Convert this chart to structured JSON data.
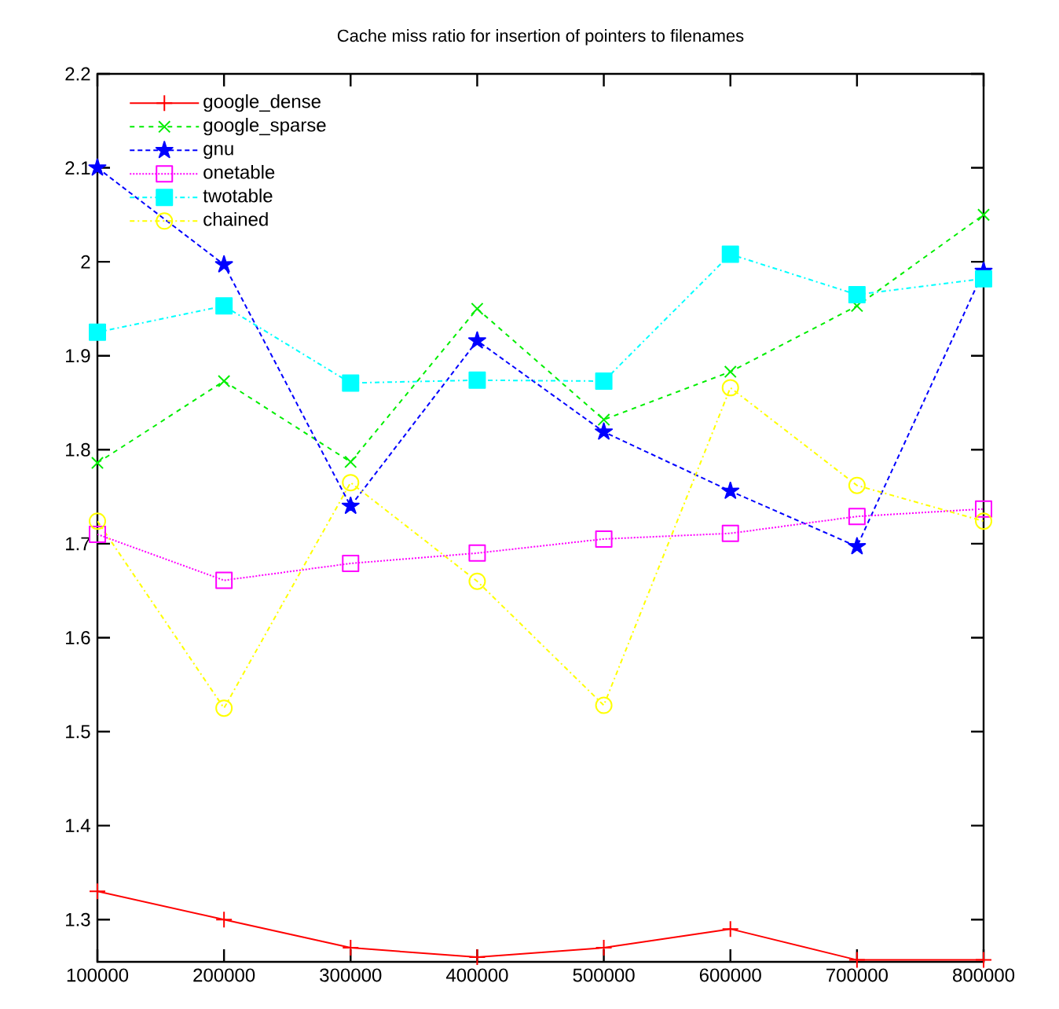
{
  "chart_data": {
    "type": "line",
    "title": "Cache miss ratio for insertion of pointers to filenames",
    "x": [
      100000,
      200000,
      300000,
      400000,
      500000,
      600000,
      700000,
      800000
    ],
    "xlim": [
      100000,
      800000
    ],
    "xticks": [
      100000,
      200000,
      300000,
      400000,
      500000,
      600000,
      700000,
      800000
    ],
    "ylim": [
      1.255,
      2.2
    ],
    "yticks": [
      1.3,
      1.4,
      1.5,
      1.6,
      1.7,
      1.8,
      1.9,
      2,
      2.1,
      2.2
    ],
    "grid": false,
    "legend": "top left",
    "series": [
      {
        "name": "google_dense",
        "color": "#ff0000",
        "marker": "plus",
        "line_style": "solid",
        "values": [
          1.33,
          1.3,
          1.27,
          1.26,
          1.27,
          1.29,
          1.257,
          1.257
        ]
      },
      {
        "name": "google_sparse",
        "color": "#00ee00",
        "marker": "cross",
        "line_style": "dashed",
        "values": [
          1.786,
          1.873,
          1.787,
          1.95,
          1.832,
          1.883,
          1.953,
          2.05
        ]
      },
      {
        "name": "gnu",
        "color": "#0000ff",
        "marker": "star",
        "line_style": "densely dashed",
        "values": [
          2.1,
          1.997,
          1.74,
          1.916,
          1.819,
          1.756,
          1.697,
          1.99
        ]
      },
      {
        "name": "onetable",
        "color": "#ff00ff",
        "marker": "square",
        "line_style": "dotted",
        "values": [
          1.71,
          1.661,
          1.679,
          1.69,
          1.705,
          1.711,
          1.729,
          1.737
        ]
      },
      {
        "name": "twotable",
        "color": "#00ffff",
        "marker": "square_filled",
        "line_style": "dashdot",
        "values": [
          1.925,
          1.953,
          1.871,
          1.874,
          1.873,
          2.008,
          1.965,
          1.982
        ]
      },
      {
        "name": "chained",
        "color": "#ffff00",
        "marker": "circle",
        "line_style": "dashdot",
        "values": [
          1.724,
          1.525,
          1.765,
          1.66,
          1.528,
          1.866,
          1.762,
          1.724
        ]
      }
    ]
  }
}
